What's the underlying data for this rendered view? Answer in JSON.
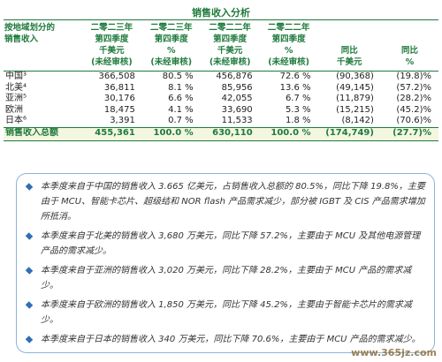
{
  "header": {
    "title": "销售收入分析"
  },
  "table": {
    "columns": [
      [
        "按地域划分的",
        "销售收入"
      ],
      [
        "二零二三年",
        "第四季度",
        "千美元",
        "(未经审核)"
      ],
      [
        "二零二三年",
        "第四季度",
        "%",
        "(未经审核)"
      ],
      [
        "二零二二年",
        "第四季度",
        "千美元",
        "(未经审核)"
      ],
      [
        "二零二二年",
        "第四季度",
        "%",
        "(未经审核)"
      ],
      [
        "同比",
        "千美元"
      ],
      [
        "同比",
        "%"
      ]
    ],
    "rows": [
      [
        "中国³",
        "366,508",
        "80.5 %",
        "456,876",
        "72.6 %",
        "(90,368)",
        "(19.8)%"
      ],
      [
        "北美⁴",
        "36,811",
        "8.1 %",
        "85,956",
        "13.6 %",
        "(49,145)",
        "(57.2)%"
      ],
      [
        "亚洲⁵",
        "30,176",
        "6.6 %",
        "42,055",
        "6.7 %",
        "(11,879)",
        "(28.2)%"
      ],
      [
        "欧洲",
        "18,475",
        "4.1 %",
        "33,690",
        "5.3 %",
        "(15,215)",
        "(45.2)%"
      ],
      [
        "日本⁶",
        "3,391",
        "0.7 %",
        "11,533",
        "1.8 %",
        "(8,142)",
        "(70.6)%"
      ]
    ],
    "total": [
      "销售收入总额",
      "455,361",
      "100.0 %",
      "630,110",
      "100.0 %",
      "(174,749)",
      "(27.7)%"
    ]
  },
  "notes": [
    "本季度来自于中国的销售收入 3.665 亿美元，占销售收入总额的 80.5%，同比下降 19.8%，主要由于 MCU、智能卡芯片、超级结和 NOR flash 产品需求减少，部分被 IGBT 及 CIS 产品需求增加所抵消。",
    "本季度来自于北美的销售收入 3,680 万美元，同比下降 57.2%，主要由于 MCU 及其他电源管理产品的需求减少。",
    "本季度来自于亚洲的销售收入 3,020 万美元，同比下降 28.2%，主要由于 MCU 产品的需求减少。",
    "本季度来自于欧洲的销售收入 1,850 万美元，同比下降 45.2%，主要由于智能卡芯片的需求减少。",
    "本季度来自于日本的销售收入 340 万美元，同比下降 70.6%，主要由于 MCU 产品的需求减少。"
  ],
  "watermark": "www.365jz.com"
}
